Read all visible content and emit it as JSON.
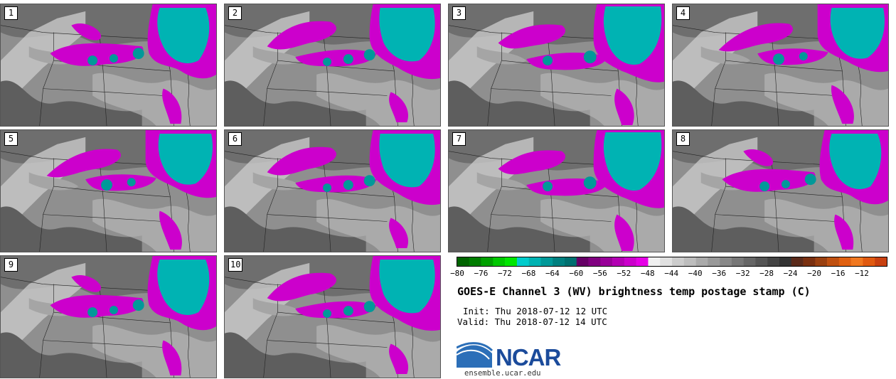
{
  "panels": [
    {
      "label": "1"
    },
    {
      "label": "2"
    },
    {
      "label": "3"
    },
    {
      "label": "4"
    },
    {
      "label": "5"
    },
    {
      "label": "6"
    },
    {
      "label": "7"
    },
    {
      "label": "8"
    },
    {
      "label": "9"
    },
    {
      "label": "10"
    }
  ],
  "colorbar": {
    "ticks": [
      "−80",
      "−76",
      "−72",
      "−68",
      "−64",
      "−60",
      "−56",
      "−52",
      "−48",
      "−44",
      "−40",
      "−36",
      "−32",
      "−28",
      "−24",
      "−20",
      "−16",
      "−12"
    ],
    "colors": [
      "#006400",
      "#007d00",
      "#00a000",
      "#00c800",
      "#00e600",
      "#00cccc",
      "#00b3b3",
      "#009999",
      "#008080",
      "#007070",
      "#660066",
      "#800080",
      "#990099",
      "#b300b3",
      "#cc00cc",
      "#e600e6",
      "#f0f0f0",
      "#e0e0e0",
      "#cccccc",
      "#bdbdbd",
      "#aaaaaa",
      "#999999",
      "#888888",
      "#777777",
      "#666666",
      "#555555",
      "#444444",
      "#333333",
      "#5a2a1a",
      "#7a3010",
      "#9a4010",
      "#c05010",
      "#e06010",
      "#f07820",
      "#e05a10",
      "#c84010"
    ]
  },
  "title": "GOES-E Channel 3 (WV) brightness temp postage stamp (C)",
  "init": "Init: Thu 2018-07-12 12 UTC",
  "valid": "Valid: Thu 2018-07-12 14 UTC",
  "logo": {
    "text": "NCAR",
    "url": "ensemble.ucar.edu"
  }
}
